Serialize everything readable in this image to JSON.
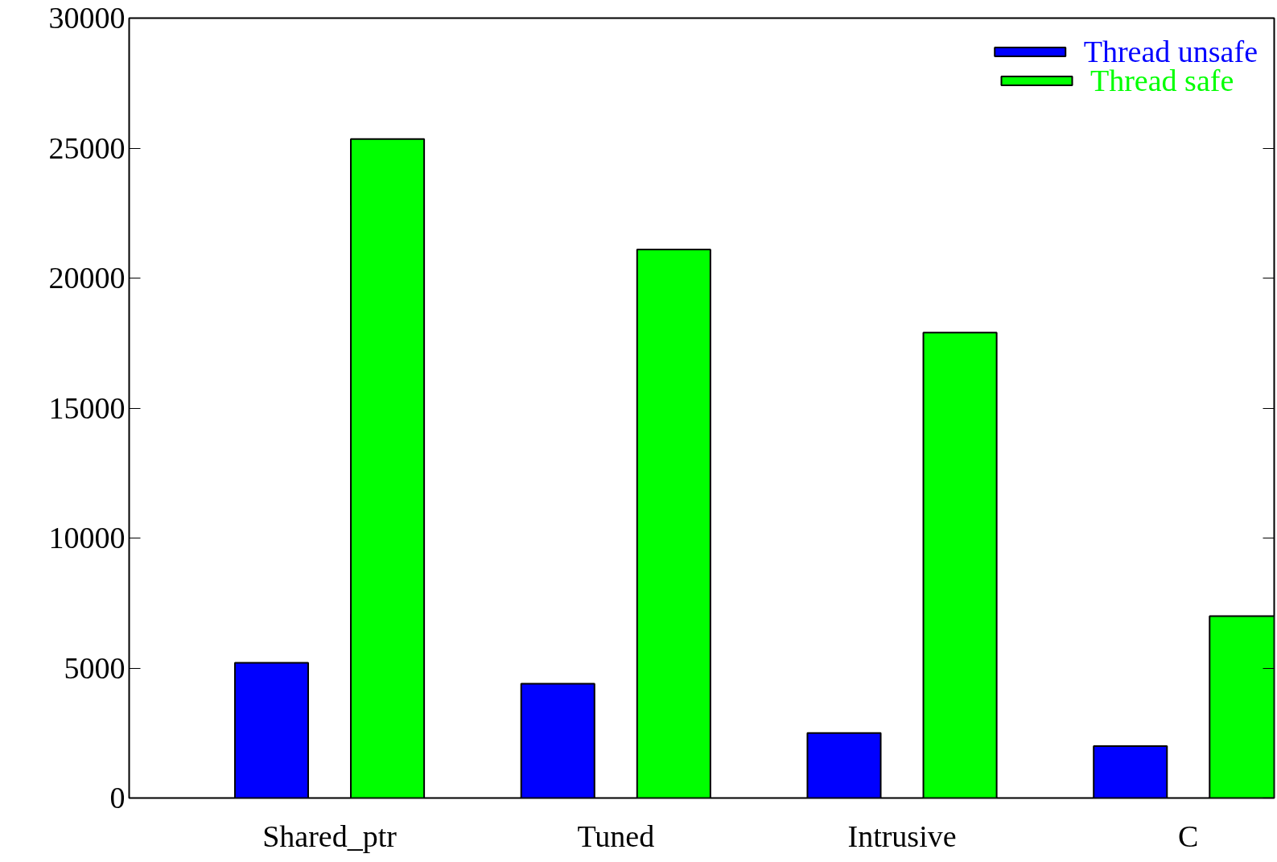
{
  "chart_data": {
    "type": "bar",
    "categories": [
      "Shared_ptr",
      "Tuned",
      "Intrusive",
      "C"
    ],
    "series": [
      {
        "name": "Thread unsafe",
        "color": "#0000ff",
        "values": [
          5200,
          4400,
          2500,
          2000
        ]
      },
      {
        "name": "Thread safe",
        "color": "#00ff00",
        "values": [
          25350,
          21100,
          17900,
          7000
        ]
      }
    ],
    "ylim": [
      0,
      30000
    ],
    "yticks": [
      0,
      5000,
      10000,
      15000,
      20000,
      25000,
      30000
    ],
    "grid": false,
    "legend": "top right"
  }
}
